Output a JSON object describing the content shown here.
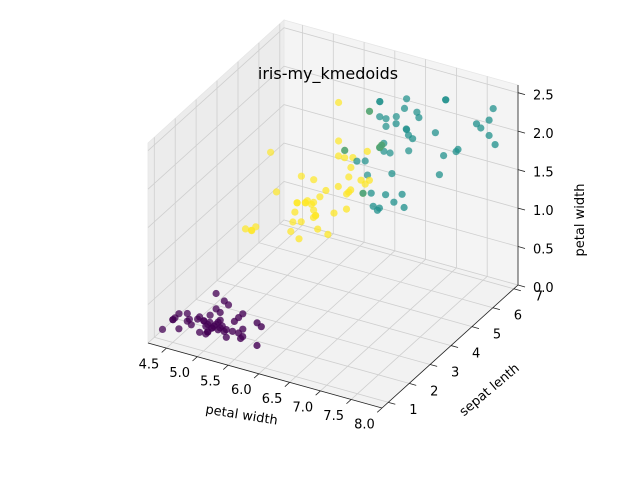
{
  "chart_data": {
    "type": "scatter",
    "title": "iris-my_kmedoids",
    "xlabel": "petal width",
    "ylabel": "sepat lenth",
    "zlabel": "petal width",
    "xlim": [
      4.2,
      8.0
    ],
    "ylim": [
      0.7,
      7.2
    ],
    "zlim": [
      0.0,
      2.6
    ],
    "xticks": [
      "4.5",
      "5.0",
      "5.5",
      "6.0",
      "6.5",
      "7.0",
      "7.5",
      "8.0"
    ],
    "yticks": [
      "1",
      "2",
      "3",
      "4",
      "5",
      "6",
      "7"
    ],
    "zticks": [
      "0.0",
      "0.5",
      "1.0",
      "1.5",
      "2.0",
      "2.5"
    ],
    "grid": true,
    "projection": "3d",
    "colors": {
      "cluster_0": "#440154",
      "cluster_1": "#21918c",
      "cluster_2": "#fde725"
    },
    "series": [
      {
        "color": "#440154",
        "points": [
          [
            5.1,
            1.4,
            0.2
          ],
          [
            4.9,
            1.4,
            0.2
          ],
          [
            4.7,
            1.3,
            0.2
          ],
          [
            4.6,
            1.5,
            0.2
          ],
          [
            5.0,
            1.4,
            0.2
          ],
          [
            5.4,
            1.7,
            0.4
          ],
          [
            4.6,
            1.4,
            0.3
          ],
          [
            5.0,
            1.5,
            0.2
          ],
          [
            4.4,
            1.4,
            0.2
          ],
          [
            4.9,
            1.5,
            0.1
          ],
          [
            5.4,
            1.5,
            0.2
          ],
          [
            4.8,
            1.6,
            0.2
          ],
          [
            4.8,
            1.4,
            0.1
          ],
          [
            4.3,
            1.1,
            0.1
          ],
          [
            5.8,
            1.2,
            0.2
          ],
          [
            5.7,
            1.5,
            0.4
          ],
          [
            5.4,
            1.3,
            0.4
          ],
          [
            5.1,
            1.4,
            0.3
          ],
          [
            5.7,
            1.7,
            0.3
          ],
          [
            5.1,
            1.5,
            0.3
          ],
          [
            5.4,
            1.7,
            0.2
          ],
          [
            5.1,
            1.5,
            0.4
          ],
          [
            4.6,
            1.0,
            0.2
          ],
          [
            5.1,
            1.7,
            0.5
          ],
          [
            4.8,
            1.9,
            0.2
          ],
          [
            5.0,
            1.6,
            0.2
          ],
          [
            5.0,
            1.6,
            0.4
          ],
          [
            5.2,
            1.5,
            0.2
          ],
          [
            5.2,
            1.4,
            0.2
          ],
          [
            4.7,
            1.6,
            0.2
          ],
          [
            4.8,
            1.6,
            0.2
          ],
          [
            5.4,
            1.5,
            0.4
          ],
          [
            5.2,
            1.5,
            0.1
          ],
          [
            5.5,
            1.4,
            0.2
          ],
          [
            4.9,
            1.5,
            0.2
          ],
          [
            5.0,
            1.2,
            0.2
          ],
          [
            5.5,
            1.3,
            0.2
          ],
          [
            4.9,
            1.4,
            0.1
          ],
          [
            4.4,
            1.3,
            0.2
          ],
          [
            5.1,
            1.5,
            0.2
          ],
          [
            5.0,
            1.3,
            0.3
          ],
          [
            4.5,
            1.3,
            0.3
          ],
          [
            4.4,
            1.3,
            0.2
          ],
          [
            5.0,
            1.6,
            0.6
          ],
          [
            5.1,
            1.9,
            0.4
          ],
          [
            4.8,
            1.4,
            0.3
          ],
          [
            5.1,
            1.6,
            0.2
          ],
          [
            4.6,
            1.4,
            0.2
          ],
          [
            5.3,
            1.5,
            0.2
          ],
          [
            5.0,
            1.4,
            0.2
          ]
        ]
      },
      {
        "color": "#fde725",
        "points": [
          [
            5.5,
            4.0,
            1.3
          ],
          [
            4.9,
            3.3,
            1.0
          ],
          [
            5.2,
            3.9,
            1.4
          ],
          [
            5.0,
            3.5,
            1.0
          ],
          [
            5.9,
            4.2,
            1.5
          ],
          [
            6.0,
            4.0,
            1.0
          ],
          [
            5.6,
            3.6,
            1.3
          ],
          [
            5.8,
            4.1,
            1.0
          ],
          [
            5.6,
            3.9,
            1.1
          ],
          [
            5.7,
            3.5,
            1.0
          ],
          [
            5.5,
            3.8,
            1.1
          ],
          [
            5.5,
            3.7,
            1.0
          ],
          [
            5.8,
            3.9,
            1.2
          ],
          [
            5.4,
            4.5,
            1.5
          ],
          [
            5.5,
            4.0,
            1.3
          ],
          [
            5.5,
            4.4,
            1.2
          ],
          [
            6.1,
            4.6,
            1.4
          ],
          [
            5.8,
            4.0,
            1.2
          ],
          [
            5.0,
            3.3,
            1.0
          ],
          [
            5.6,
            4.2,
            1.3
          ],
          [
            5.7,
            4.2,
            1.2
          ],
          [
            5.7,
            4.1,
            1.3
          ],
          [
            6.2,
            4.3,
            1.3
          ],
          [
            5.1,
            3.0,
            1.1
          ],
          [
            5.7,
            4.2,
            1.3
          ],
          [
            4.9,
            4.5,
            1.7
          ],
          [
            6.0,
            4.5,
            1.5
          ],
          [
            5.6,
            4.1,
            1.3
          ],
          [
            5.6,
            4.5,
            1.5
          ],
          [
            6.1,
            4.7,
            1.4
          ],
          [
            5.9,
            4.8,
            1.8
          ],
          [
            6.0,
            5.0,
            1.5
          ],
          [
            6.3,
            4.9,
            1.5
          ],
          [
            6.3,
            4.7,
            1.6
          ],
          [
            5.8,
            4.0,
            1.2
          ],
          [
            6.4,
            4.5,
            1.5
          ],
          [
            5.7,
            4.5,
            1.3
          ],
          [
            6.2,
            4.5,
            1.5
          ],
          [
            6.0,
            5.1,
            1.6
          ],
          [
            6.1,
            4.0,
            1.3
          ],
          [
            6.4,
            5.3,
            1.9
          ],
          [
            6.3,
            5.0,
            1.9
          ],
          [
            6.0,
            4.8,
            1.8
          ],
          [
            6.1,
            4.9,
            1.8
          ],
          [
            5.9,
            5.1,
            1.8
          ],
          [
            6.3,
            5.1,
            1.5
          ],
          [
            5.8,
            5.1,
            1.9
          ],
          [
            6.5,
            5.1,
            2.0
          ],
          [
            6.2,
            5.4,
            2.3
          ],
          [
            5.8,
            5.1,
            2.4
          ]
        ]
      },
      {
        "color": "#21918c",
        "points": [
          [
            7.0,
            4.7,
            1.4
          ],
          [
            6.4,
            4.5,
            1.5
          ],
          [
            6.9,
            4.9,
            1.5
          ],
          [
            6.5,
            4.6,
            1.5
          ],
          [
            6.6,
            4.6,
            1.3
          ],
          [
            6.7,
            4.4,
            1.4
          ],
          [
            6.6,
            4.4,
            1.4
          ],
          [
            6.8,
            4.8,
            1.4
          ],
          [
            6.7,
            5.0,
            1.7
          ],
          [
            6.7,
            4.7,
            1.5
          ],
          [
            7.2,
            6.1,
            2.5
          ],
          [
            6.3,
            5.6,
            2.4
          ],
          [
            6.5,
            5.5,
            1.8
          ],
          [
            7.1,
            5.9,
            2.1
          ],
          [
            6.3,
            5.6,
            1.8
          ],
          [
            6.5,
            5.8,
            2.2
          ],
          [
            7.6,
            6.6,
            2.1
          ],
          [
            7.3,
            6.3,
            1.8
          ],
          [
            6.7,
            5.8,
            1.8
          ],
          [
            7.2,
            6.1,
            2.5
          ],
          [
            6.5,
            5.1,
            2.0
          ],
          [
            6.4,
            5.3,
            1.9
          ],
          [
            6.8,
            5.5,
            2.1
          ],
          [
            6.4,
            5.3,
            2.3
          ],
          [
            7.7,
            6.7,
            2.2
          ],
          [
            7.7,
            6.9,
            2.3
          ],
          [
            6.9,
            5.7,
            2.3
          ],
          [
            7.7,
            6.7,
            2.0
          ],
          [
            6.3,
            4.9,
            1.8
          ],
          [
            6.7,
            5.7,
            2.1
          ],
          [
            7.2,
            6.0,
            1.8
          ],
          [
            6.2,
            4.8,
            1.8
          ],
          [
            6.4,
            5.6,
            2.1
          ],
          [
            7.2,
            5.8,
            1.6
          ],
          [
            7.4,
            6.1,
            1.9
          ],
          [
            7.9,
            6.4,
            2.0
          ],
          [
            6.4,
            5.6,
            2.2
          ],
          [
            6.1,
            5.6,
            1.4
          ],
          [
            7.7,
            6.1,
            2.3
          ],
          [
            6.3,
            5.6,
            2.4
          ],
          [
            6.4,
            5.5,
            1.8
          ],
          [
            6.9,
            5.4,
            2.1
          ],
          [
            6.7,
            5.6,
            2.4
          ],
          [
            6.9,
            5.1,
            2.3
          ],
          [
            6.8,
            5.9,
            2.3
          ],
          [
            6.7,
            5.7,
            2.5
          ],
          [
            6.7,
            5.2,
            2.3
          ],
          [
            6.5,
            5.2,
            2.0
          ],
          [
            6.2,
            5.4,
            2.3
          ],
          [
            5.9,
            5.1,
            1.8
          ]
        ]
      }
    ]
  }
}
